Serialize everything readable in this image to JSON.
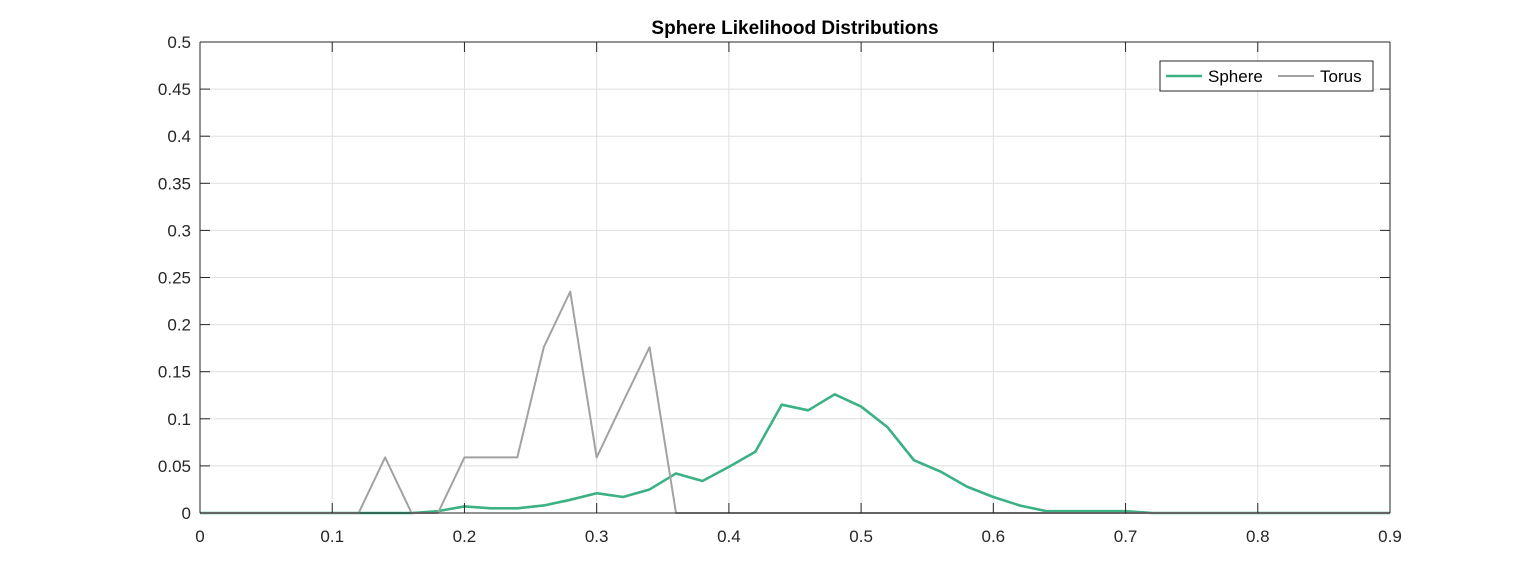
{
  "chart_data": {
    "type": "line",
    "title": "Sphere Likelihood Distributions",
    "xlabel": "",
    "ylabel": "",
    "xlim": [
      0,
      0.9
    ],
    "ylim": [
      0,
      0.5
    ],
    "xticks": [
      0,
      0.1,
      0.2,
      0.3,
      0.4,
      0.5,
      0.6,
      0.7,
      0.8,
      0.9
    ],
    "yticks": [
      0,
      0.05,
      0.1,
      0.15,
      0.2,
      0.25,
      0.3,
      0.35,
      0.4,
      0.45,
      0.5
    ],
    "xtick_labels": [
      "0",
      "0.1",
      "0.2",
      "0.3",
      "0.4",
      "0.5",
      "0.6",
      "0.7",
      "0.8",
      "0.9"
    ],
    "ytick_labels": [
      "0",
      "0.05",
      "0.1",
      "0.15",
      "0.2",
      "0.25",
      "0.3",
      "0.35",
      "0.4",
      "0.45",
      "0.5"
    ],
    "grid": true,
    "legend_position": "top-right",
    "series": [
      {
        "name": "Sphere",
        "color": "#3bb184",
        "x": [
          0,
          0.02,
          0.04,
          0.06,
          0.08,
          0.1,
          0.12,
          0.14,
          0.16,
          0.18,
          0.2,
          0.22,
          0.24,
          0.26,
          0.28,
          0.3,
          0.32,
          0.34,
          0.36,
          0.38,
          0.4,
          0.42,
          0.44,
          0.46,
          0.48,
          0.5,
          0.52,
          0.54,
          0.56,
          0.58,
          0.6,
          0.62,
          0.64,
          0.66,
          0.68,
          0.7,
          0.72,
          0.74,
          0.76,
          0.78,
          0.8,
          0.82,
          0.84,
          0.86,
          0.88,
          0.9
        ],
        "y": [
          0,
          0,
          0,
          0,
          0,
          0,
          0,
          0,
          0,
          0.002,
          0.007,
          0.005,
          0.005,
          0.008,
          0.014,
          0.021,
          0.017,
          0.025,
          0.042,
          0.034,
          0.049,
          0.065,
          0.115,
          0.109,
          0.126,
          0.113,
          0.091,
          0.056,
          0.044,
          0.028,
          0.017,
          0.008,
          0.002,
          0.002,
          0.002,
          0.002,
          0,
          0,
          0,
          0,
          0,
          0,
          0,
          0,
          0,
          0
        ]
      },
      {
        "name": "Torus",
        "color": "#a2a2a2",
        "x": [
          0,
          0.02,
          0.04,
          0.06,
          0.08,
          0.1,
          0.12,
          0.14,
          0.16,
          0.18,
          0.2,
          0.22,
          0.24,
          0.26,
          0.28,
          0.3,
          0.32,
          0.34,
          0.36,
          0.38,
          0.4,
          0.42,
          0.44,
          0.46,
          0.48,
          0.5,
          0.52,
          0.54,
          0.56,
          0.58,
          0.6,
          0.62,
          0.64,
          0.66,
          0.68,
          0.7,
          0.72,
          0.74,
          0.76,
          0.78,
          0.8,
          0.82,
          0.84,
          0.86,
          0.88,
          0.9
        ],
        "y": [
          0,
          0,
          0,
          0,
          0,
          0,
          0,
          0.059,
          0,
          0,
          0.059,
          0.059,
          0.059,
          0.176,
          0.235,
          0.059,
          0.118,
          0.176,
          0,
          0,
          0,
          0,
          0,
          0,
          0,
          0,
          0,
          0,
          0,
          0,
          0,
          0,
          0,
          0,
          0,
          0,
          0,
          0,
          0,
          0,
          0,
          0,
          0,
          0,
          0,
          0
        ]
      }
    ]
  }
}
